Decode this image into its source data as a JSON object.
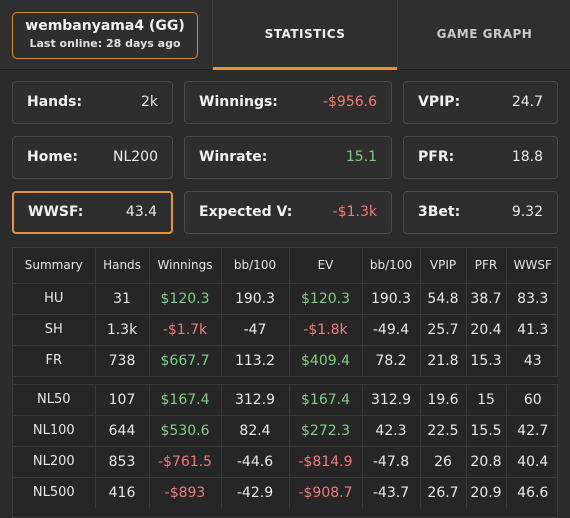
{
  "player": {
    "name": "wembanyama4 (GG)",
    "last_online": "Last online: 28 days ago"
  },
  "tabs": {
    "statistics": "STATISTICS",
    "game_graph": "GAME GRAPH",
    "active": "statistics"
  },
  "stats": {
    "hands": {
      "label": "Hands:",
      "value": "2k"
    },
    "winnings": {
      "label": "Winnings:",
      "value": "-$956.6"
    },
    "vpip": {
      "label": "VPIP:",
      "value": "24.7"
    },
    "home": {
      "label": "Home:",
      "value": "NL200"
    },
    "winrate": {
      "label": "Winrate:",
      "value": "15.1"
    },
    "pfr": {
      "label": "PFR:",
      "value": "18.8"
    },
    "wwsf": {
      "label": "WWSF:",
      "value": "43.4"
    },
    "expected": {
      "label": "Expected V:",
      "value": "-$1.3k"
    },
    "threebet": {
      "label": "3Bet:",
      "value": "9.32"
    }
  },
  "table": {
    "headers": [
      "Summary",
      "Hands",
      "Winnings",
      "bb/100",
      "EV",
      "bb/100",
      "VPIP",
      "PFR",
      "WWSF"
    ],
    "groups": [
      [
        [
          "HU",
          "31",
          "$120.3",
          "190.3",
          "$120.3",
          "190.3",
          "54.8",
          "38.7",
          "83.3"
        ],
        [
          "SH",
          "1.3k",
          "-$1.7k",
          "-47",
          "-$1.8k",
          "-49.4",
          "25.7",
          "20.4",
          "41.3"
        ],
        [
          "FR",
          "738",
          "$667.7",
          "113.2",
          "$409.4",
          "78.2",
          "21.8",
          "15.3",
          "43"
        ]
      ],
      [
        [
          "NL50",
          "107",
          "$167.4",
          "312.9",
          "$167.4",
          "312.9",
          "19.6",
          "15",
          "60"
        ],
        [
          "NL100",
          "644",
          "$530.6",
          "82.4",
          "$272.3",
          "42.3",
          "22.5",
          "15.5",
          "42.7"
        ],
        [
          "NL200",
          "853",
          "-$761.5",
          "-44.6",
          "-$814.9",
          "-47.8",
          "26",
          "20.8",
          "40.4"
        ],
        [
          "NL500",
          "416",
          "-$893",
          "-42.9",
          "-$908.7",
          "-43.7",
          "26.7",
          "20.9",
          "46.6"
        ]
      ]
    ]
  },
  "colors": {
    "accent": "#e8913b",
    "positive": "#7fd07f",
    "negative": "#f07b7b"
  }
}
